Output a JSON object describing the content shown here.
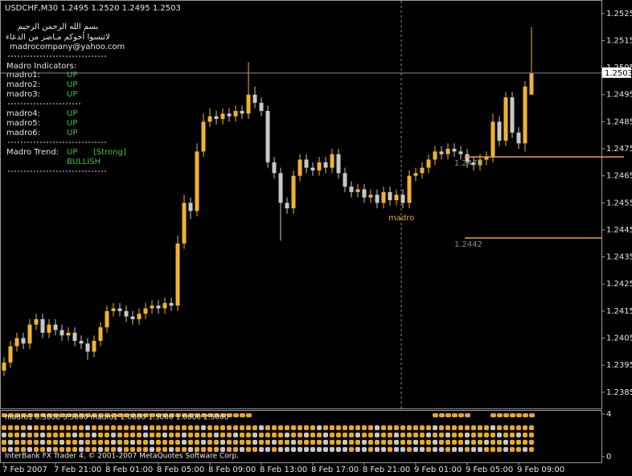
{
  "chart_data": {
    "type": "candlestick",
    "title": "USDCHF,M30  1.2495 1.2520 1.2495 1.2503",
    "categories": [
      "7 Feb 2007",
      null,
      null,
      null,
      null,
      null,
      null,
      null,
      "7 Feb 21:00",
      null,
      null,
      null,
      null,
      null,
      null,
      null,
      "8 Feb 01:00",
      null,
      null,
      null,
      null,
      null,
      null,
      null,
      "8 Feb 05:00",
      null,
      null,
      null,
      null,
      null,
      null,
      null,
      "8 Feb 09:00",
      null,
      null,
      null,
      null,
      null,
      null,
      null,
      "8 Feb 13:00",
      null,
      null,
      null,
      null,
      null,
      null,
      null,
      "8 Feb 17:00",
      null,
      null,
      null,
      null,
      null,
      null,
      null,
      "8 Feb 21:00",
      null,
      null,
      null,
      null,
      null,
      null,
      null,
      "9 Feb 01:00",
      null,
      null,
      null,
      null,
      null,
      null,
      null,
      "9 Feb 05:00",
      null,
      null,
      null,
      null,
      null,
      null,
      null,
      "9 Feb 09:00",
      null,
      null
    ],
    "open": [
      1.2393,
      1.2396,
      1.2402,
      1.2405,
      1.2403,
      1.241,
      1.2412,
      1.2407,
      1.241,
      1.2408,
      1.2406,
      1.2407,
      1.2404,
      1.2403,
      1.24,
      1.2404,
      1.2409,
      1.2415,
      1.2416,
      1.2415,
      1.2413,
      1.2412,
      1.2414,
      1.2416,
      1.2417,
      1.2416,
      1.2418,
      1.2417,
      1.244,
      1.2455,
      1.2452,
      1.2474,
      1.2485,
      1.2487,
      1.2486,
      1.2488,
      1.2487,
      1.2489,
      1.2488,
      1.2495,
      1.2492,
      1.2489,
      1.247,
      1.2466,
      1.2455,
      1.2453,
      1.2465,
      1.2471,
      1.2468,
      1.2467,
      1.247,
      1.2468,
      1.2473,
      1.2466,
      1.2461,
      1.2459,
      1.246,
      1.2457,
      1.2458,
      1.2455,
      1.2459,
      1.2456,
      1.2458,
      1.2455,
      1.2465,
      1.2466,
      1.2468,
      1.2471,
      1.2474,
      1.2473,
      1.2475,
      1.2474,
      1.2473,
      1.247,
      1.2469,
      1.2471,
      1.2472,
      1.2485,
      1.2478,
      1.2494,
      1.2481,
      1.2477,
      1.2495
    ],
    "high": [
      1.2398,
      1.2404,
      1.2407,
      1.2407,
      1.2412,
      1.2414,
      1.2414,
      1.2412,
      1.2412,
      1.241,
      1.2409,
      1.2409,
      1.2406,
      1.2405,
      1.2406,
      1.2411,
      1.2417,
      1.2418,
      1.2418,
      1.2417,
      1.2415,
      1.2416,
      1.2418,
      1.2419,
      1.2419,
      1.242,
      1.242,
      1.2443,
      1.2458,
      1.2457,
      1.2477,
      1.2488,
      1.249,
      1.2489,
      1.249,
      1.249,
      1.2491,
      1.2491,
      1.2507,
      1.2498,
      1.2494,
      1.2491,
      1.2472,
      1.2468,
      1.2457,
      1.2467,
      1.2473,
      1.2473,
      1.247,
      1.2472,
      1.2472,
      1.2475,
      1.2475,
      1.2468,
      1.2463,
      1.2462,
      1.2462,
      1.246,
      1.246,
      1.2461,
      1.2461,
      1.246,
      1.246,
      1.2467,
      1.2468,
      1.247,
      1.2473,
      1.2476,
      1.2476,
      1.2477,
      1.2477,
      1.2476,
      1.2475,
      1.2472,
      1.2473,
      1.2474,
      1.2488,
      1.2487,
      1.2496,
      1.2496,
      1.2483,
      1.25,
      1.252
    ],
    "low": [
      1.2391,
      1.2394,
      1.24,
      1.2401,
      1.2401,
      1.2408,
      1.2405,
      1.2405,
      1.2406,
      1.2404,
      1.2404,
      1.2402,
      1.2401,
      1.2397,
      1.2398,
      1.2402,
      1.2407,
      1.2413,
      1.2413,
      1.2411,
      1.241,
      1.241,
      1.2412,
      1.2414,
      1.2414,
      1.2414,
      1.2415,
      1.2415,
      1.2438,
      1.2449,
      1.245,
      1.2472,
      1.2483,
      1.2484,
      1.2484,
      1.2485,
      1.2485,
      1.2486,
      1.2486,
      1.249,
      1.2487,
      1.2468,
      1.2464,
      1.2441,
      1.2451,
      1.2451,
      1.2463,
      1.2466,
      1.2465,
      1.2465,
      1.2466,
      1.2466,
      1.2464,
      1.2459,
      1.2457,
      1.2457,
      1.2455,
      1.2455,
      1.2453,
      1.2453,
      1.2454,
      1.2454,
      1.2453,
      1.2453,
      1.2463,
      1.2464,
      1.2466,
      1.2469,
      1.2471,
      1.2471,
      1.2472,
      1.2471,
      1.2468,
      1.2467,
      1.2467,
      1.2469,
      1.247,
      1.2476,
      1.2476,
      1.2479,
      1.2475,
      1.2474,
      1.2495
    ],
    "close": [
      1.2396,
      1.2402,
      1.2405,
      1.2403,
      1.241,
      1.2412,
      1.2407,
      1.241,
      1.2408,
      1.2406,
      1.2407,
      1.2404,
      1.2403,
      1.24,
      1.2404,
      1.2409,
      1.2415,
      1.2416,
      1.2415,
      1.2413,
      1.2412,
      1.2414,
      1.2416,
      1.2417,
      1.2416,
      1.2418,
      1.2417,
      1.244,
      1.2455,
      1.2452,
      1.2474,
      1.2485,
      1.2487,
      1.2486,
      1.2488,
      1.2487,
      1.2489,
      1.2488,
      1.2495,
      1.2492,
      1.2489,
      1.247,
      1.2466,
      1.2455,
      1.2453,
      1.2465,
      1.2471,
      1.2468,
      1.2467,
      1.247,
      1.2468,
      1.2473,
      1.2466,
      1.2461,
      1.2459,
      1.246,
      1.2457,
      1.2458,
      1.2455,
      1.2459,
      1.2456,
      1.2458,
      1.2455,
      1.2465,
      1.2466,
      1.2468,
      1.2471,
      1.2474,
      1.2473,
      1.2475,
      1.2474,
      1.2473,
      1.247,
      1.2469,
      1.2471,
      1.2472,
      1.2485,
      1.2478,
      1.2494,
      1.2481,
      1.2477,
      1.2498,
      1.2503
    ],
    "up_color": "#f0b330",
    "down_color": "#c8c8c8",
    "ylim": [
      1.2379,
      1.253
    ],
    "yticks": [
      1.2385,
      1.2395,
      1.2405,
      1.2415,
      1.2425,
      1.2435,
      1.2445,
      1.2455,
      1.2465,
      1.2475,
      1.2485,
      1.2495,
      1.2505,
      1.2515,
      1.2525
    ],
    "price_line": 1.2503,
    "levels": [
      1.2472,
      1.2442
    ],
    "level_color": "#e8a33a",
    "indicator": {
      "label": "madro1 0.5000 3.5000  madro2 2.0000  1.5000  1.0000 2.5000",
      "ylim": [
        0,
        4
      ],
      "yticks": [
        0,
        4
      ]
    }
  },
  "overlay": {
    "basmala": "بسم الله الرحمن الرحيم",
    "dua": "لاتنسوا أخوكم مـاضر من الدعاء",
    "email": "madrocompany@yahoo.com",
    "indicators_title": "Madro Indicators:",
    "groups": [
      [
        {
          "name": "madro1:",
          "state": "UP"
        },
        {
          "name": "madro2:",
          "state": "UP"
        },
        {
          "name": "madro3:",
          "state": "UP"
        }
      ],
      [
        {
          "name": "madro4:",
          "state": "UP"
        },
        {
          "name": "madro5:",
          "state": "UP"
        },
        {
          "name": "madro6:",
          "state": "UP"
        }
      ]
    ],
    "trend": {
      "name": "Madro Trend:",
      "state": "UP",
      "strength": "[Strong]",
      "bias": "BULLISH"
    },
    "marker": "madro",
    "footer": "InterBank FX Trader 4, © 2001-2007 MetaQuotes Software Corp."
  }
}
